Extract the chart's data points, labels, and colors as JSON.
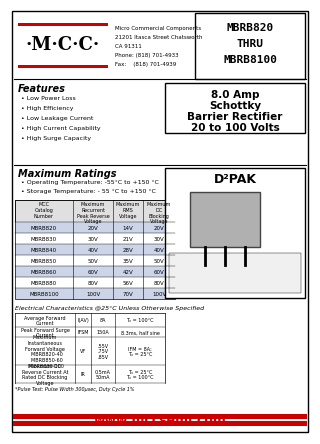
{
  "bg_color": "#ffffff",
  "red_color": "#cc0000",
  "logo_text": "·M·C·C·",
  "company_lines": [
    "Micro Commercial Components",
    "21201 Itasca Street Chatsworth",
    "CA 91311",
    "Phone: (818) 701-4933",
    "Fax:    (818) 701-4939"
  ],
  "title_lines": [
    "MBRB820",
    "THRU",
    "MBRB8100"
  ],
  "subtitle_lines": [
    "8.0 Amp",
    "Schottky",
    "Barrier Rectifier",
    "20 to 100 Volts"
  ],
  "package": "D²PAK",
  "features_title": "Features",
  "features": [
    "Low Power Loss",
    "High Efficiency",
    "Low Leakage Current",
    "High Current Capability",
    "High Surge Capacity"
  ],
  "ratings_title": "Maximum Ratings",
  "ratings_bullets": [
    "Operating Temperature: -55°C to +150 °C",
    "Storage Temperature: - 55 °C to +150 °C"
  ],
  "table_headers": [
    "MCC\nCatalog\nNumber",
    "Maximum\nRecurrent\nPeak Reverse\nVoltage",
    "Maximum\nRMS\nVoltage",
    "Maximum\nDC\nBlocking\nVoltage"
  ],
  "table_rows": [
    [
      "MBRB820",
      "20V",
      "14V",
      "20V"
    ],
    [
      "MBRB830",
      "30V",
      "21V",
      "30V"
    ],
    [
      "MBRB840",
      "40V",
      "28V",
      "40V"
    ],
    [
      "MBRB850",
      "50V",
      "35V",
      "50V"
    ],
    [
      "MBRB860",
      "60V",
      "42V",
      "60V"
    ],
    [
      "MBRB880",
      "80V",
      "56V",
      "80V"
    ],
    [
      "MBRB8100",
      "100V",
      "70V",
      "100V"
    ]
  ],
  "elec_title": "Electrical Characteristics @25°C Unless Otherwise Specified",
  "elec_rows": [
    [
      "Average Forward\nCurrent",
      "I(AV)",
      "8A",
      "Tₓ = 100°C"
    ],
    [
      "Peak Forward Surge\nCurrent",
      "IFSM",
      "150A",
      "8.3ms, half sine"
    ],
    [
      "Maximum\nInstantaneous\nForward Voltage\n  MBRB820-40\n  MBRB850-60\n  MBRB880-100",
      "VF",
      ".55V\n.75V\n.85V",
      "IFM = 8A;\nTₓ = 25°C"
    ],
    [
      "Maximum DC\nReverse Current At\nRated DC Blocking\nVoltage",
      "IR",
      "0.5mA\n50mA",
      "Tₓ = 25°C\nTₓ = 100°C"
    ]
  ],
  "pulse_note": "*Pulse Test: Pulse Width 300μsec, Duty Cycle 1%",
  "website": "www.mccsemi.com"
}
